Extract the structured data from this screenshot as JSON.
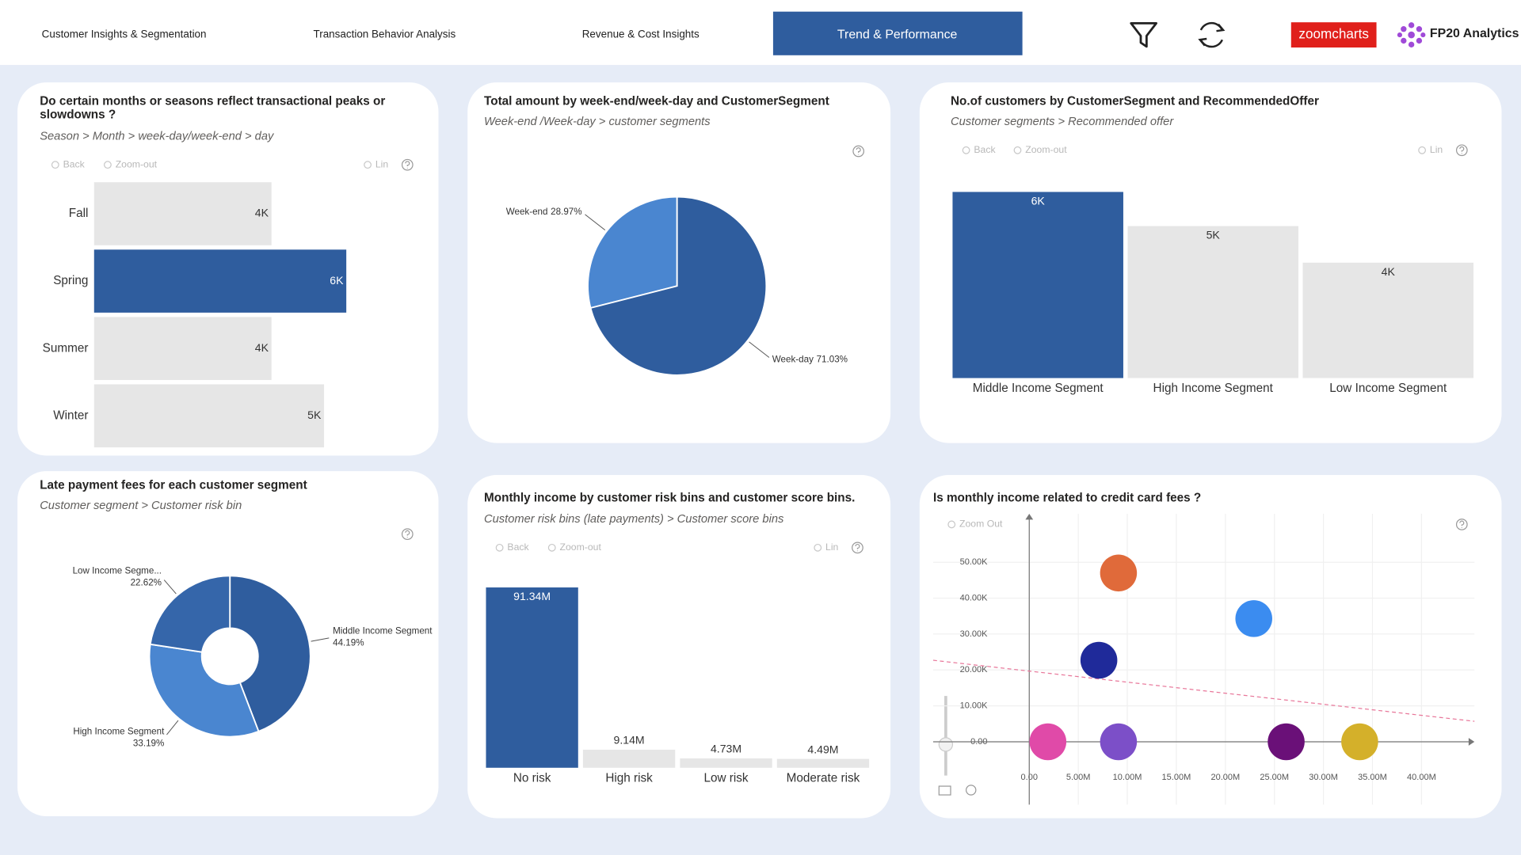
{
  "header": {
    "tabs": [
      "Customer Insights & Segmentation",
      "Transaction Behavior Analysis",
      "Revenue & Cost Insights",
      "Trend & Performance"
    ],
    "active_tab": 3,
    "logos": [
      "zoomcharts",
      "FP20 Analytics"
    ]
  },
  "chart_data": [
    {
      "type": "bar",
      "orientation": "horizontal",
      "title": "Do certain months or seasons reflect transactional peaks or slowdowns ?",
      "subtitle": "Season > Month > week-day/week-end > day",
      "toolbar": [
        "Back",
        "Zoom-out",
        "Lin"
      ],
      "categories": [
        "Fall",
        "Spring",
        "Summer",
        "Winter"
      ],
      "values": [
        4220,
        6000,
        4220,
        5470
      ],
      "value_labels": [
        "4K",
        "6K",
        "4K",
        "5K"
      ],
      "colors": [
        "#e6e6e6",
        "#2f5d9e",
        "#e6e6e6",
        "#e6e6e6"
      ]
    },
    {
      "type": "pie",
      "title": "Total amount by week-end/week-day and CustomerSegment",
      "subtitle": "Week-end /Week-day > customer segments",
      "categories": [
        "Week-end",
        "Week-day"
      ],
      "values": [
        28.97,
        71.03
      ],
      "value_labels": [
        "28.97%",
        "71.03%"
      ],
      "colors": [
        "#4a86d0",
        "#2f5d9e"
      ]
    },
    {
      "type": "bar",
      "orientation": "vertical",
      "title": "No.of customers by CustomerSegment and RecommendedOffer",
      "subtitle": "Customer segments > Recommended offer",
      "toolbar": [
        "Back",
        "Zoom-out",
        "Lin"
      ],
      "categories": [
        "Middle Income Segment",
        "High Income Segment",
        "Low Income Segment"
      ],
      "values": [
        6000,
        4900,
        3720
      ],
      "value_labels": [
        "6K",
        "5K",
        "4K"
      ],
      "colors": [
        "#2f5d9e",
        "#e6e6e6",
        "#e6e6e6"
      ]
    },
    {
      "type": "pie",
      "title": "Late payment fees for each customer segment",
      "subtitle": "Customer segment > Customer risk bin",
      "categories": [
        "Middle Income Segment",
        "High Income Segment",
        "Low Income Segme..."
      ],
      "values": [
        44.19,
        33.19,
        22.62
      ],
      "value_labels": [
        "44.19%",
        "33.19%",
        "22.62%"
      ],
      "colors": [
        "#2f5d9e",
        "#4a86d0",
        "#3566aa"
      ]
    },
    {
      "type": "bar",
      "orientation": "vertical",
      "title": "Monthly income by customer risk bins and customer score bins.",
      "subtitle": "Customer risk bins (late payments) > Customer score bins",
      "toolbar": [
        "Back",
        "Zoom-out",
        "Lin"
      ],
      "categories": [
        "No risk",
        "High risk",
        "Low risk",
        "Moderate risk"
      ],
      "values": [
        91340000,
        9140000,
        4730000,
        4490000
      ],
      "value_labels": [
        "91.34M",
        "9.14M",
        "4.73M",
        "4.49M"
      ],
      "colors": [
        "#2f5d9e",
        "#e6e6e6",
        "#e6e6e6",
        "#e6e6e6"
      ]
    },
    {
      "type": "scatter",
      "title": "Is monthly income related to credit card fees ?",
      "toolbar": [
        "Zoom Out"
      ],
      "x": [
        1900000,
        7100000,
        9100000,
        9100000,
        22900000,
        26200000,
        33700000
      ],
      "values": [
        0,
        22700,
        47000,
        0,
        34300,
        0,
        0
      ],
      "colors": [
        "#e04aa8",
        "#1f2a9a",
        "#e06a3a",
        "#7c4fc8",
        "#3b8cf0",
        "#6a1078",
        "#d4b02a"
      ],
      "xlim": [
        -9800000,
        45400000
      ],
      "ylim": [
        -17500,
        63500
      ],
      "xticks": [
        {
          "value": 0,
          "label": "0.00"
        },
        {
          "value": 5000000,
          "label": "5.00M"
        },
        {
          "value": 10000000,
          "label": "10.00M"
        },
        {
          "value": 15000000,
          "label": "15.00M"
        },
        {
          "value": 20000000,
          "label": "20.00M"
        },
        {
          "value": 25000000,
          "label": "25.00M"
        },
        {
          "value": 30000000,
          "label": "30.00M"
        },
        {
          "value": 35000000,
          "label": "35.00M"
        },
        {
          "value": 40000000,
          "label": "40.00M"
        }
      ],
      "yticks": [
        {
          "value": 0,
          "label": "0.00"
        },
        {
          "value": 10000,
          "label": "10.00K"
        },
        {
          "value": 20000,
          "label": "20.00K"
        },
        {
          "value": 30000,
          "label": "30.00K"
        },
        {
          "value": 40000,
          "label": "40.00K"
        },
        {
          "value": 50000,
          "label": "50.00K"
        }
      ],
      "grid": true,
      "trend_line": {
        "x": [
          -9800000,
          45400000
        ],
        "y": [
          22700,
          5700
        ],
        "color": "#e8779a"
      }
    }
  ]
}
